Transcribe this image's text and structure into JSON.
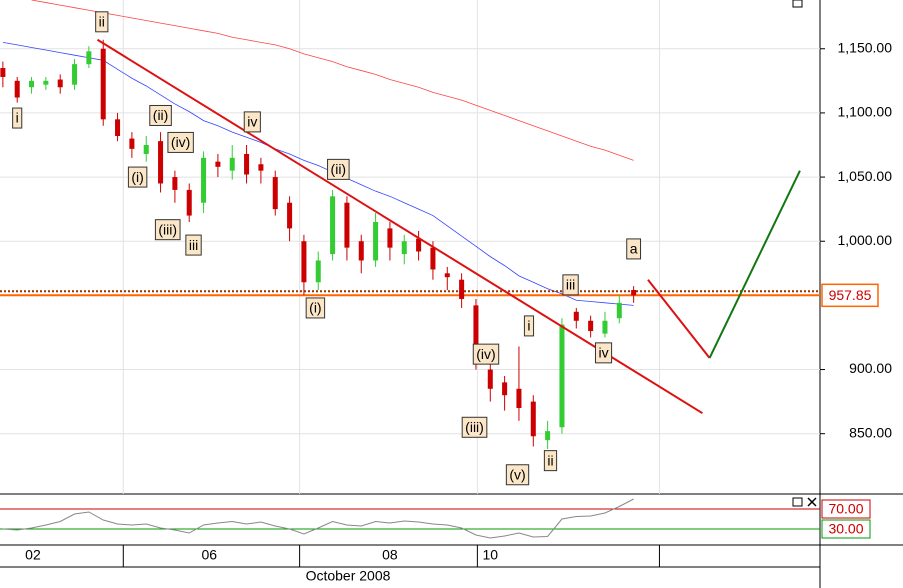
{
  "chart_data": {
    "type": "candlestick",
    "xlim": [
      -0.2,
      57
    ],
    "ylim": [
      803,
      1188
    ],
    "yticks": [
      {
        "value": 850,
        "label": "850.00"
      },
      {
        "value": 900,
        "label": "900.00"
      },
      {
        "value": 1000,
        "label": "1,000.00"
      },
      {
        "value": 1050,
        "label": "1,050.00"
      },
      {
        "value": 1100,
        "label": "1,100.00"
      },
      {
        "value": 1150,
        "label": "1,150.00"
      }
    ],
    "xticks": [
      {
        "value": 2.1,
        "label": "02"
      },
      {
        "value": 14.4,
        "label": "06"
      },
      {
        "value": 27,
        "label": "08"
      },
      {
        "value": 34,
        "label": "10"
      }
    ],
    "xgrid": [
      8.4,
      20.7,
      33.1,
      45.8
    ],
    "x_axis_label": "October 2008",
    "grid": true,
    "up_color": "#33cc33",
    "down_color": "#cc0000",
    "open": [
      1135,
      1125,
      1120,
      1122,
      1126,
      1122,
      1138,
      1150,
      1095,
      1080,
      1068,
      1078,
      1050,
      1040,
      1030,
      1062,
      1055,
      1068,
      1060,
      1050,
      1030,
      1000,
      968,
      990,
      1030,
      1000,
      985,
      1010,
      990,
      1002,
      995,
      975,
      970,
      950,
      900,
      890,
      885,
      875,
      845,
      855,
      945,
      938,
      928,
      940,
      962
    ],
    "high": [
      1140,
      1128,
      1128,
      1128,
      1130,
      1142,
      1152,
      1157,
      1100,
      1085,
      1082,
      1085,
      1055,
      1045,
      1070,
      1068,
      1075,
      1075,
      1065,
      1055,
      1035,
      1005,
      992,
      1040,
      1035,
      1005,
      1022,
      1015,
      1005,
      1008,
      1000,
      980,
      975,
      955,
      905,
      895,
      918,
      880,
      860,
      940,
      948,
      942,
      945,
      958,
      965
    ],
    "low": [
      1120,
      1108,
      1115,
      1118,
      1115,
      1118,
      1135,
      1090,
      1078,
      1065,
      1062,
      1038,
      1030,
      1015,
      1022,
      1050,
      1048,
      1045,
      1045,
      1020,
      1000,
      958,
      962,
      985,
      985,
      975,
      980,
      985,
      982,
      985,
      970,
      962,
      948,
      900,
      875,
      868,
      860,
      840,
      838,
      850,
      932,
      925,
      925,
      936,
      952
    ],
    "close": [
      1128,
      1112,
      1125,
      1125,
      1120,
      1138,
      1148,
      1095,
      1082,
      1072,
      1075,
      1045,
      1040,
      1020,
      1065,
      1058,
      1065,
      1052,
      1055,
      1025,
      1010,
      968,
      985,
      1035,
      995,
      985,
      1015,
      995,
      1000,
      992,
      978,
      972,
      955,
      905,
      885,
      880,
      870,
      848,
      852,
      935,
      938,
      930,
      938,
      952,
      957.85
    ],
    "series": [
      {
        "color": "#3344ff",
        "values": [
          1155,
          1153,
          1151,
          1149,
          1147,
          1145,
          1143,
          1141,
          1134,
          1127,
          1121,
          1114,
          1107,
          1101,
          1094,
          1090,
          1085,
          1081,
          1077,
          1072,
          1068,
          1063,
          1059,
          1054,
          1049,
          1044,
          1039,
          1035,
          1030,
          1025,
          1020,
          1012,
          1004,
          996,
          988,
          981,
          973,
          968,
          963,
          959,
          954,
          953,
          952,
          951,
          950
        ]
      },
      {
        "color": "#ff4444",
        "values": [
          null,
          null,
          1188,
          1186,
          1184,
          1182,
          1180,
          1178,
          1176,
          1174,
          1172,
          1170,
          1168,
          1166,
          1164,
          1162,
          1159,
          1157,
          1155,
          1153,
          1150,
          1146,
          1143,
          1140,
          1136,
          1133,
          1130,
          1126,
          1123,
          1120,
          1116,
          1113,
          1110,
          1106,
          1102,
          1098,
          1094,
          1090,
          1086,
          1082,
          1078,
          1074,
          1071,
          1067,
          1063
        ]
      }
    ],
    "trendlines": [
      {
        "color": "#dd1111",
        "points": [
          [
            6.6,
            1157
          ],
          [
            48.8,
            866
          ]
        ]
      },
      {
        "color": "#dd1111",
        "points": [
          [
            45,
            970
          ],
          [
            49.3,
            909
          ]
        ]
      },
      {
        "color": "#117711",
        "points": [
          [
            49.3,
            909
          ],
          [
            55.6,
            1055
          ]
        ]
      }
    ],
    "hlines": [
      {
        "value": 961,
        "color": "#993300",
        "dashed": true
      },
      {
        "value": 957.85,
        "color": "#ff6600",
        "dashed": false
      }
    ],
    "last_price": {
      "value": 957.85,
      "label": "957.85"
    },
    "wave_labels": [
      {
        "text": "ii",
        "x": 6.9,
        "y": 1171
      },
      {
        "text": "i",
        "x": 1.0,
        "y": 1096
      },
      {
        "text": "(ii)",
        "x": 11.0,
        "y": 1098
      },
      {
        "text": "(iv)",
        "x": 12.4,
        "y": 1077
      },
      {
        "text": "(i)",
        "x": 9.4,
        "y": 1050
      },
      {
        "text": "iv",
        "x": 17.4,
        "y": 1093
      },
      {
        "text": "(iii)",
        "x": 11.5,
        "y": 1009
      },
      {
        "text": "iii",
        "x": 13.3,
        "y": 997
      },
      {
        "text": "(ii)",
        "x": 23.4,
        "y": 1056
      },
      {
        "text": "(i)",
        "x": 21.8,
        "y": 948
      },
      {
        "text": "iii",
        "x": 39.6,
        "y": 966
      },
      {
        "text": "a",
        "x": 44.0,
        "y": 994
      },
      {
        "text": "i",
        "x": 36.7,
        "y": 934
      },
      {
        "text": "(iv)",
        "x": 33.7,
        "y": 912
      },
      {
        "text": "iv",
        "x": 41.9,
        "y": 913
      },
      {
        "text": "(iii)",
        "x": 32.9,
        "y": 855
      },
      {
        "text": "(v)",
        "x": 35.9,
        "y": 818
      },
      {
        "text": "ii",
        "x": 38.2,
        "y": 829
      }
    ],
    "rsi": {
      "ylim": [
        0,
        100
      ],
      "color": "#888888",
      "values": [
        30,
        28,
        32,
        38,
        45,
        60,
        64,
        48,
        40,
        38,
        40,
        32,
        28,
        22,
        38,
        42,
        45,
        40,
        44,
        36,
        30,
        20,
        32,
        45,
        38,
        36,
        45,
        42,
        46,
        44,
        40,
        38,
        32,
        18,
        12,
        16,
        22,
        14,
        15,
        50,
        55,
        56,
        62,
        75,
        90
      ],
      "levels": [
        {
          "value": 70,
          "label": "70.00",
          "color": "#cc0000"
        },
        {
          "value": 30,
          "label": "30.00",
          "color": "#009900"
        }
      ]
    }
  }
}
